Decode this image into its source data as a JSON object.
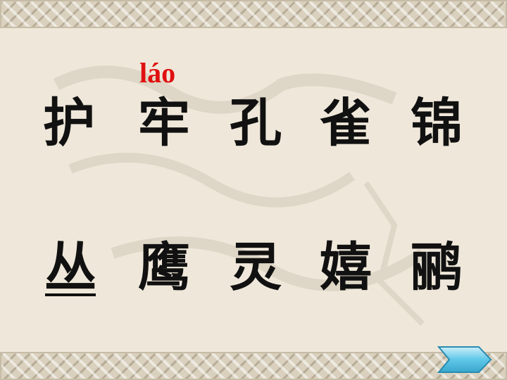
{
  "pinyin": "láo",
  "row1": [
    "护",
    "牢",
    "孔",
    "雀",
    "锦"
  ],
  "row2": [
    "丛",
    "鹰",
    "灵",
    "嬉",
    "鹂"
  ],
  "colors": {
    "pinyin": "#e01010",
    "text": "#111111",
    "button": "#5fc8e8"
  },
  "next_button_icon": "chevron-right-icon"
}
